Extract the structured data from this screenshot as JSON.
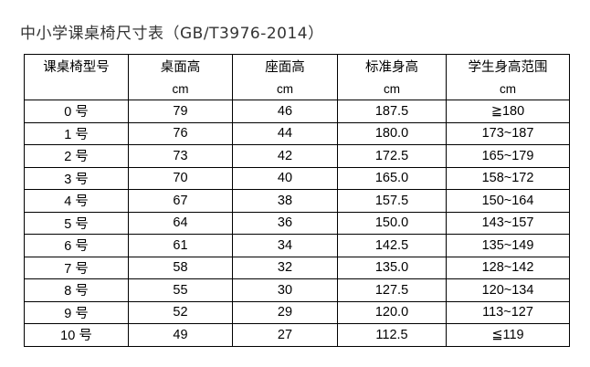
{
  "title": "中小学课桌椅尺寸表（GB/T3976-2014）",
  "table": {
    "headers": [
      "课桌椅型号",
      "桌面高",
      "座面高",
      "标准身高",
      "学生身高范围"
    ],
    "units": [
      "",
      "cm",
      "cm",
      "cm",
      "cm"
    ],
    "rows": [
      [
        "0 号",
        "79",
        "46",
        "187.5",
        "≧180"
      ],
      [
        "1 号",
        "76",
        "44",
        "180.0",
        "173~187"
      ],
      [
        "2 号",
        "73",
        "42",
        "172.5",
        "165~179"
      ],
      [
        "3 号",
        "70",
        "40",
        "165.0",
        "158~172"
      ],
      [
        "4 号",
        "67",
        "38",
        "157.5",
        "150~164"
      ],
      [
        "5 号",
        "64",
        "36",
        "150.0",
        "143~157"
      ],
      [
        "6 号",
        "61",
        "34",
        "142.5",
        "135~149"
      ],
      [
        "7 号",
        "58",
        "32",
        "135.0",
        "128~142"
      ],
      [
        "8 号",
        "55",
        "30",
        "127.5",
        "120~134"
      ],
      [
        "9 号",
        "52",
        "29",
        "120.0",
        "113~127"
      ],
      [
        "10 号",
        "49",
        "27",
        "112.5",
        "≦119"
      ]
    ]
  }
}
